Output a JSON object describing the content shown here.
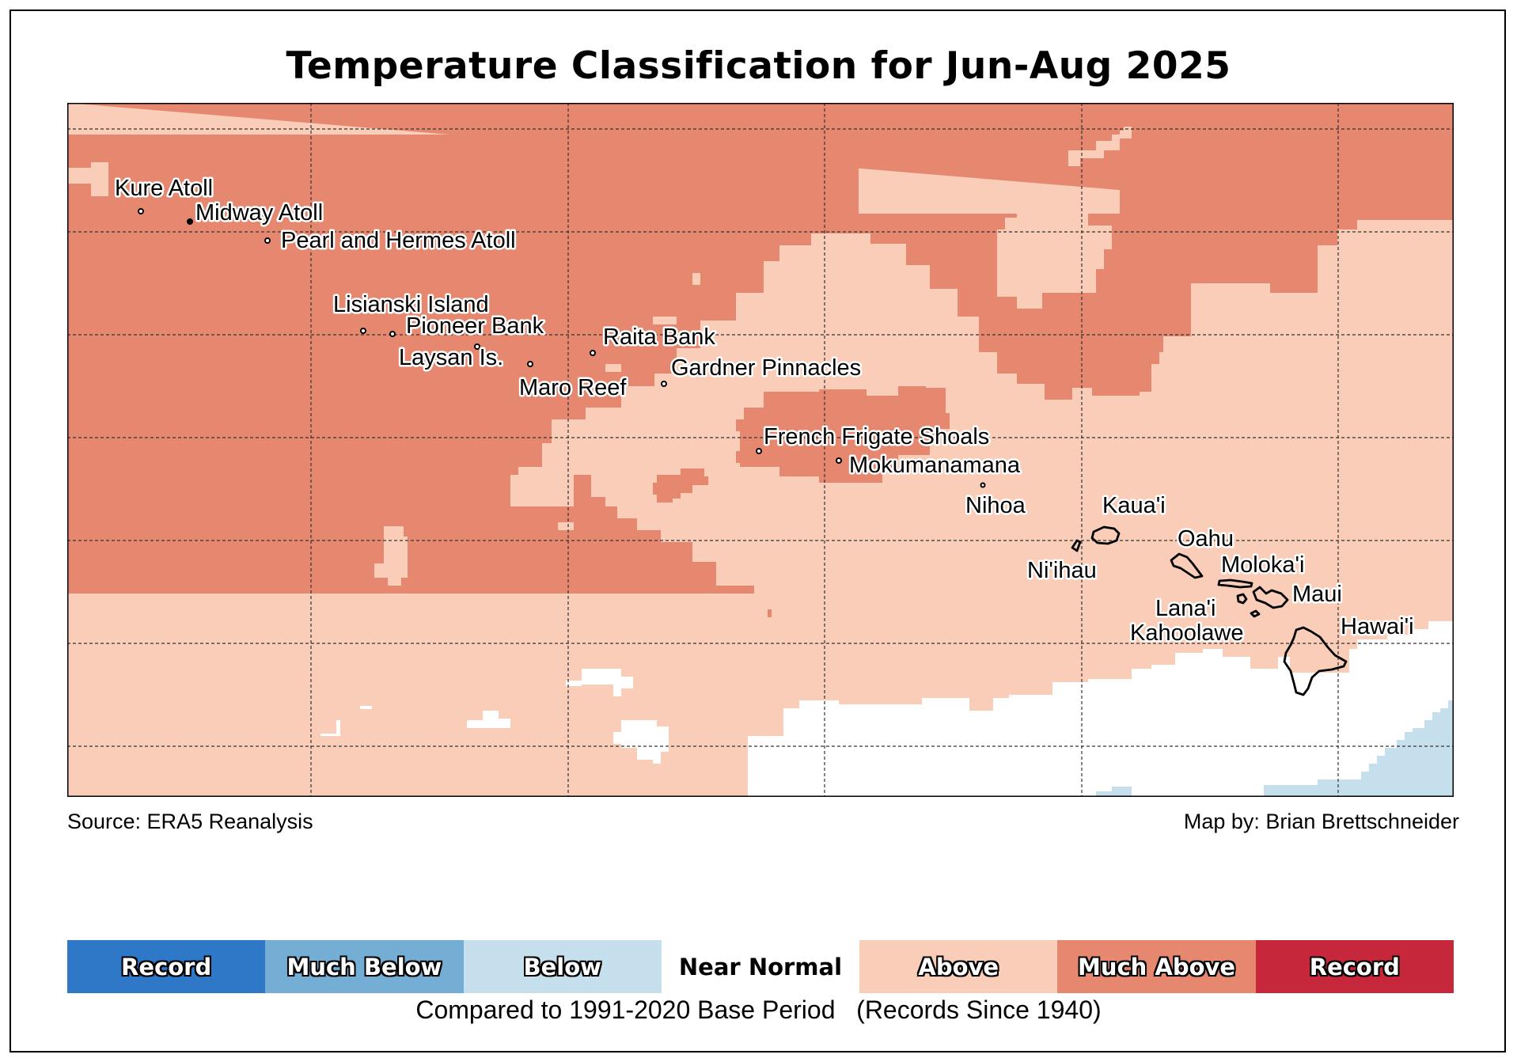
{
  "title": "Temperature Classification for Jun-Aug 2025",
  "source": "Source: ERA5 Reanalysis",
  "credit": "Map by: Brian Brettschneider",
  "base_period": "Compared to 1991-2020 Base Period   (Records Since 1940)",
  "colors": {
    "record_cold": "#2f77c7",
    "much_below": "#74aed4",
    "below": "#c6dfed",
    "near_normal": "#ffffff",
    "above": "#f9cdb7",
    "much_above": "#e6876f",
    "record_warm": "#c7273a"
  },
  "legend": [
    {
      "label": "Record",
      "class": "record_cold"
    },
    {
      "label": "Much Below",
      "class": "much_below"
    },
    {
      "label": "Below",
      "class": "below"
    },
    {
      "label": "Near Normal",
      "class": "near_normal"
    },
    {
      "label": "Above",
      "class": "above"
    },
    {
      "label": "Much Above",
      "class": "much_above"
    },
    {
      "label": "Record",
      "class": "record_warm"
    }
  ],
  "places": [
    {
      "name": "Kure Atoll"
    },
    {
      "name": "Midway Atoll"
    },
    {
      "name": "Pearl and Hermes Atoll"
    },
    {
      "name": "Lisianski Island"
    },
    {
      "name": "Pioneer Bank"
    },
    {
      "name": "Raita Bank"
    },
    {
      "name": "Laysan Is."
    },
    {
      "name": "Gardner Pinnacles"
    },
    {
      "name": "Maro Reef"
    },
    {
      "name": "French Frigate Shoals"
    },
    {
      "name": "Mokumanamana"
    },
    {
      "name": "Nihoa"
    },
    {
      "name": "Kaua'i"
    },
    {
      "name": "Ni'ihau"
    },
    {
      "name": "Oahu"
    },
    {
      "name": "Moloka'i"
    },
    {
      "name": "Maui"
    },
    {
      "name": "Lana'i"
    },
    {
      "name": "Kahoolawe"
    },
    {
      "name": "Hawai'i"
    }
  ]
}
